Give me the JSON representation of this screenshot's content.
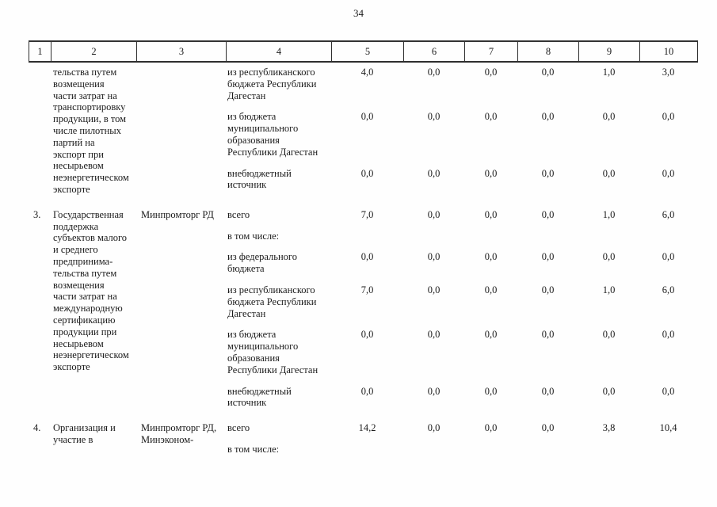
{
  "page": {
    "number": "34"
  },
  "table": {
    "header_columns": [
      "1",
      "2",
      "3",
      "4",
      "5",
      "6",
      "7",
      "8",
      "9",
      "10"
    ],
    "rows": [
      {
        "num": "",
        "name": "тельства путем\nвозмещения\nчасти затрат на\nтранспортировку\nпродукции, в том\nчисле пилотных\nпартий на\nэкспорт при\nнесырьевом\nнеэнергетическом\nэкспорте",
        "executor": "",
        "sub_rows": [
          {
            "label": "из республиканского\nбюджета Республики\nДагестан",
            "values": [
              "4,0",
              "0,0",
              "0,0",
              "0,0",
              "1,0",
              "3,0"
            ]
          },
          {
            "label": "из бюджета\nмуниципального\nобразования\nРеспублики Дагестан",
            "values": [
              "0,0",
              "0,0",
              "0,0",
              "0,0",
              "0,0",
              "0,0"
            ]
          },
          {
            "label": "внебюджетный\nисточник",
            "values": [
              "0,0",
              "0,0",
              "0,0",
              "0,0",
              "0,0",
              "0,0"
            ]
          }
        ]
      },
      {
        "num": "3.",
        "name": "Государственная\nподдержка\nсубъектов малого\nи среднего\nпредпринима-\nтельства путем\nвозмещения\nчасти затрат на\nмеждународную\nсертификацию\nпродукции при\nнесырьевом\nнеэнергетическом\nэкспорте",
        "executor": "Минпромторг РД",
        "sub_rows": [
          {
            "label": "всего",
            "values": [
              "7,0",
              "0,0",
              "0,0",
              "0,0",
              "1,0",
              "6,0"
            ]
          },
          {
            "label": "в том числе:",
            "values": []
          },
          {
            "label": "из федерального\nбюджета",
            "values": [
              "0,0",
              "0,0",
              "0,0",
              "0,0",
              "0,0",
              "0,0"
            ]
          },
          {
            "label": "из республиканского\nбюджета Республики\nДагестан",
            "values": [
              "7,0",
              "0,0",
              "0,0",
              "0,0",
              "1,0",
              "6,0"
            ]
          },
          {
            "label": "из бюджета\nмуниципального\nобразования\nРеспублики Дагестан",
            "values": [
              "0,0",
              "0,0",
              "0,0",
              "0,0",
              "0,0",
              "0,0"
            ]
          },
          {
            "label": "внебюджетный\nисточник",
            "values": [
              "0,0",
              "0,0",
              "0,0",
              "0,0",
              "0,0",
              "0,0"
            ]
          }
        ]
      },
      {
        "num": "4.",
        "name": "Организация и\nучастие в",
        "executor": "Минпромторг РД,\nМинэконом-",
        "sub_rows": [
          {
            "label": "всего",
            "values": [
              "14,2",
              "0,0",
              "0,0",
              "0,0",
              "3,8",
              "10,4"
            ]
          },
          {
            "label": "в том числе:",
            "values": []
          }
        ]
      }
    ]
  }
}
